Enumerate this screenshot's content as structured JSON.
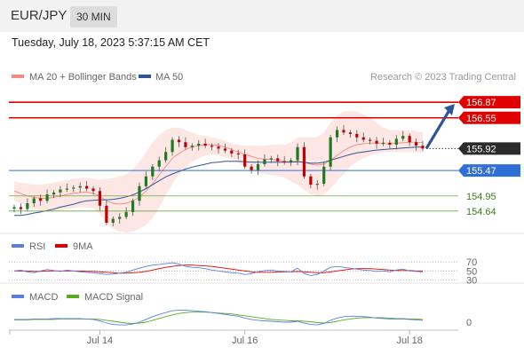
{
  "header": {
    "symbol": "EUR/JPY",
    "timeframe": "30 MIN"
  },
  "datetime": "Tuesday, July 18, 2023 5:37:15 AM CET",
  "credit": "Research © 2023 Trading Central",
  "colors": {
    "bb": "#f28b82",
    "bb_fill": "#fde3e1",
    "ma50": "#2f5597",
    "resistance": "#e10000",
    "support_blue": "#2f6fd6",
    "target_green": "#6aaa3a",
    "up": "#1e7a1e",
    "down": "#c00000",
    "arrow": "#2f5597",
    "rsi": "#5b7fe0",
    "rsi9": "#e10000",
    "macd": "#5b7fe0",
    "macd_signal": "#5aaa22"
  },
  "chart_data": [
    {
      "type": "candlestick",
      "legend": [
        {
          "name": "MA 20 + Bollinger Bands",
          "color": "#f28b82"
        },
        {
          "name": "MA 50",
          "color": "#2f5597"
        }
      ],
      "ylim": [
        154.2,
        157.2
      ],
      "x_ticks": [
        {
          "label": "Jul 14",
          "index": 13
        },
        {
          "label": "Jul 16",
          "index": 35
        },
        {
          "label": "Jul 18",
          "index": 60
        }
      ],
      "levels": [
        {
          "value": 156.87,
          "label": "156.87",
          "kind": "resistance",
          "tag": "red"
        },
        {
          "value": 156.55,
          "label": "156.55",
          "kind": "resistance",
          "tag": "red"
        },
        {
          "value": 155.92,
          "label": "155.92",
          "kind": "last",
          "tag": "dark"
        },
        {
          "value": 155.47,
          "label": "155.47",
          "kind": "support",
          "tag": "blue"
        },
        {
          "value": 154.95,
          "label": "154.95",
          "kind": "target",
          "tag": "green"
        },
        {
          "value": 154.64,
          "label": "154.64",
          "kind": "target",
          "tag": "green"
        }
      ],
      "closes": [
        154.72,
        154.68,
        154.8,
        154.9,
        154.85,
        154.98,
        155.02,
        155.08,
        155.1,
        155.12,
        155.15,
        155.1,
        155.05,
        154.75,
        154.4,
        154.48,
        154.52,
        154.62,
        154.85,
        155.15,
        155.35,
        155.55,
        155.68,
        155.85,
        156.1,
        156.05,
        155.95,
        155.98,
        156.02,
        155.98,
        155.96,
        155.92,
        155.88,
        155.82,
        155.8,
        155.55,
        155.48,
        155.6,
        155.7,
        155.72,
        155.66,
        155.64,
        155.68,
        155.95,
        155.35,
        155.18,
        155.2,
        155.55,
        156.15,
        156.3,
        156.25,
        156.22,
        156.15,
        156.1,
        156.08,
        156.02,
        156.04,
        156.0,
        156.12,
        156.18,
        156.05,
        155.98,
        155.92
      ],
      "ma20": [
        155.05,
        155.0,
        154.95,
        154.92,
        154.9,
        154.9,
        154.92,
        154.95,
        154.98,
        155.0,
        155.02,
        155.03,
        155.0,
        154.94,
        154.85,
        154.8,
        154.78,
        154.8,
        154.85,
        154.92,
        155.05,
        155.2,
        155.38,
        155.55,
        155.72,
        155.82,
        155.9,
        155.95,
        155.98,
        156.0,
        156.0,
        155.98,
        155.95,
        155.9,
        155.85,
        155.8,
        155.76,
        155.72,
        155.7,
        155.7,
        155.68,
        155.66,
        155.65,
        155.66,
        155.64,
        155.6,
        155.58,
        155.6,
        155.68,
        155.78,
        155.88,
        155.95,
        156.0,
        156.02,
        156.03,
        156.03,
        156.02,
        156.02,
        156.03,
        156.04,
        156.05,
        156.05,
        156.04
      ],
      "bb_upper": [
        155.25,
        155.22,
        155.2,
        155.18,
        155.18,
        155.2,
        155.22,
        155.25,
        155.28,
        155.3,
        155.32,
        155.32,
        155.3,
        155.28,
        155.3,
        155.32,
        155.35,
        155.4,
        155.5,
        155.65,
        155.85,
        156.05,
        156.2,
        156.3,
        156.35,
        156.35,
        156.3,
        156.25,
        156.2,
        156.18,
        156.15,
        156.12,
        156.08,
        156.02,
        156.0,
        155.98,
        155.98,
        155.98,
        155.98,
        156.0,
        156.0,
        156.0,
        156.05,
        156.15,
        156.15,
        156.15,
        156.15,
        156.25,
        156.45,
        156.6,
        156.68,
        156.7,
        156.68,
        156.62,
        156.55,
        156.45,
        156.35,
        156.3,
        156.3,
        156.3,
        156.3,
        156.28,
        156.25
      ],
      "bb_lower": [
        154.85,
        154.8,
        154.72,
        154.68,
        154.65,
        154.62,
        154.62,
        154.65,
        154.68,
        154.7,
        154.72,
        154.72,
        154.7,
        154.58,
        154.4,
        154.28,
        154.22,
        154.2,
        154.22,
        154.28,
        154.35,
        154.5,
        154.7,
        154.95,
        155.2,
        155.38,
        155.52,
        155.65,
        155.72,
        155.78,
        155.8,
        155.78,
        155.75,
        155.7,
        155.62,
        155.55,
        155.48,
        155.42,
        155.4,
        155.38,
        155.36,
        155.32,
        155.25,
        155.18,
        155.08,
        154.98,
        154.95,
        154.98,
        155.1,
        155.25,
        155.4,
        155.55,
        155.65,
        155.72,
        155.78,
        155.82,
        155.84,
        155.85,
        155.85,
        155.85,
        155.85,
        155.84,
        155.83
      ],
      "ma50": [
        154.55,
        154.55,
        154.57,
        154.6,
        154.62,
        154.65,
        154.68,
        154.72,
        154.75,
        154.78,
        154.82,
        154.85,
        154.86,
        154.87,
        154.87,
        154.88,
        154.9,
        154.93,
        154.97,
        155.03,
        155.1,
        155.18,
        155.26,
        155.34,
        155.4,
        155.45,
        155.5,
        155.54,
        155.57,
        155.6,
        155.63,
        155.64,
        155.66,
        155.66,
        155.66,
        155.65,
        155.64,
        155.64,
        155.64,
        155.64,
        155.64,
        155.64,
        155.64,
        155.65,
        155.64,
        155.62,
        155.62,
        155.64,
        155.68,
        155.72,
        155.76,
        155.8,
        155.83,
        155.85,
        155.87,
        155.89,
        155.9,
        155.91,
        155.92,
        155.93,
        155.94,
        155.95,
        155.95
      ],
      "arrow": {
        "from_index": 62,
        "from_value": 155.92,
        "to_value": 156.87
      }
    },
    {
      "type": "line",
      "legend": [
        {
          "name": "RSI",
          "color": "#5b7fe0"
        },
        {
          "name": "9MA",
          "color": "#e10000"
        }
      ],
      "ylim": [
        25,
        80
      ],
      "y_ticks": [
        70,
        50,
        30
      ],
      "rsi": [
        50,
        52,
        48,
        46,
        50,
        53,
        51,
        49,
        52,
        50,
        48,
        47,
        46,
        44,
        42,
        43,
        45,
        47,
        52,
        56,
        60,
        63,
        64,
        66,
        68,
        65,
        60,
        58,
        57,
        55,
        52,
        50,
        48,
        46,
        45,
        42,
        44,
        48,
        51,
        52,
        50,
        49,
        48,
        56,
        44,
        40,
        42,
        50,
        58,
        60,
        58,
        56,
        54,
        52,
        51,
        49,
        50,
        48,
        52,
        54,
        50,
        49,
        48
      ],
      "ma9": [
        50,
        50,
        50,
        49,
        49,
        50,
        50,
        50,
        50,
        50,
        50,
        49,
        49,
        48,
        47,
        46,
        45,
        45,
        46,
        47,
        49,
        52,
        55,
        58,
        60,
        62,
        63,
        63,
        62,
        61,
        60,
        58,
        56,
        54,
        52,
        50,
        48,
        47,
        47,
        47,
        48,
        48,
        48,
        49,
        48,
        47,
        46,
        46,
        48,
        50,
        52,
        54,
        55,
        55,
        55,
        54,
        53,
        52,
        51,
        51,
        51,
        50,
        50
      ]
    },
    {
      "type": "line",
      "legend": [
        {
          "name": "MACD",
          "color": "#5b7fe0"
        },
        {
          "name": "MACD Signal",
          "color": "#5aaa22"
        }
      ],
      "ylim": [
        -0.35,
        0.35
      ],
      "y_ticks": [
        0
      ],
      "macd": [
        0.06,
        0.06,
        0.06,
        0.07,
        0.07,
        0.07,
        0.08,
        0.08,
        0.08,
        0.08,
        0.08,
        0.07,
        0.06,
        0.03,
        -0.02,
        -0.05,
        -0.06,
        -0.06,
        -0.04,
        0.0,
        0.06,
        0.12,
        0.17,
        0.21,
        0.25,
        0.26,
        0.26,
        0.25,
        0.24,
        0.23,
        0.21,
        0.19,
        0.17,
        0.15,
        0.13,
        0.09,
        0.06,
        0.04,
        0.03,
        0.02,
        0.01,
        0.0,
        0.0,
        0.02,
        -0.02,
        -0.05,
        -0.06,
        -0.03,
        0.04,
        0.09,
        0.12,
        0.13,
        0.13,
        0.12,
        0.11,
        0.09,
        0.08,
        0.07,
        0.07,
        0.07,
        0.06,
        0.05,
        0.04
      ],
      "signal": [
        0.05,
        0.05,
        0.05,
        0.06,
        0.06,
        0.06,
        0.06,
        0.07,
        0.07,
        0.07,
        0.07,
        0.07,
        0.07,
        0.06,
        0.04,
        0.02,
        0.0,
        -0.02,
        -0.03,
        -0.02,
        0.0,
        0.04,
        0.08,
        0.12,
        0.16,
        0.19,
        0.21,
        0.22,
        0.22,
        0.22,
        0.21,
        0.2,
        0.19,
        0.18,
        0.16,
        0.14,
        0.12,
        0.1,
        0.08,
        0.06,
        0.05,
        0.04,
        0.03,
        0.03,
        0.02,
        0.01,
        -0.01,
        -0.02,
        -0.01,
        0.02,
        0.05,
        0.07,
        0.09,
        0.1,
        0.1,
        0.1,
        0.1,
        0.09,
        0.08,
        0.08,
        0.07,
        0.07,
        0.06
      ]
    }
  ]
}
